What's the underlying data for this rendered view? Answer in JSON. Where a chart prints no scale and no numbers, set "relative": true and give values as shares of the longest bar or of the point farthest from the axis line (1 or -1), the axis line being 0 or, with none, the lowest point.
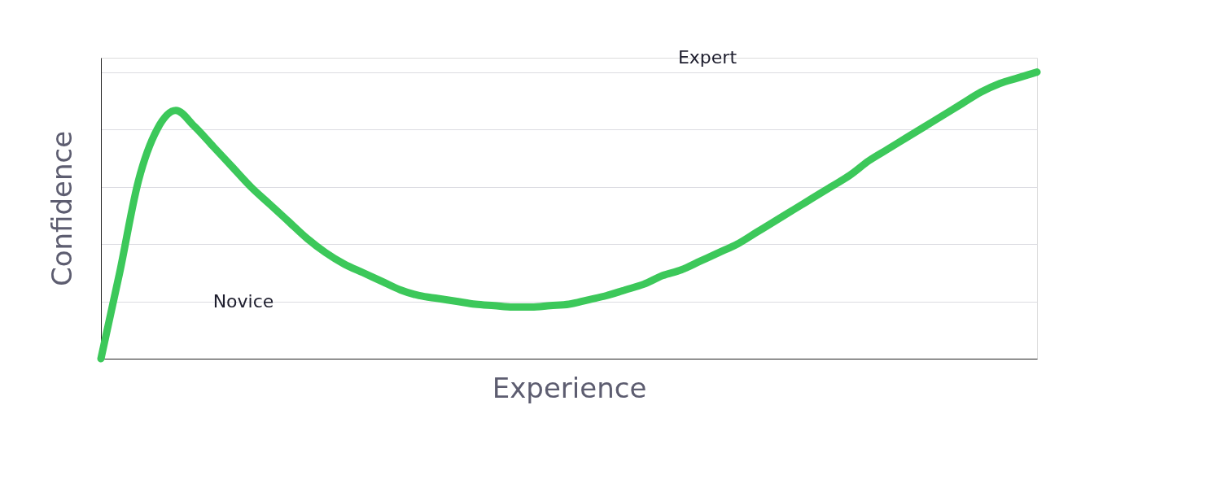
{
  "chart_data": {
    "type": "line",
    "relative": true,
    "xlabel": "Experience",
    "ylabel": "Confidence",
    "categories": [
      null,
      null,
      null,
      null,
      null,
      null,
      null,
      null,
      null,
      null,
      null,
      null,
      null,
      null,
      null,
      null,
      null,
      null,
      null,
      null,
      null,
      null,
      null,
      null,
      null,
      null,
      null,
      null,
      null,
      null,
      null,
      null,
      null,
      null,
      null,
      null,
      null,
      null,
      null,
      null,
      null,
      null,
      null,
      null,
      null,
      null,
      null,
      null,
      null,
      null,
      null
    ],
    "series": [
      {
        "color": "#3cc85a",
        "values": [
          0,
          0.3,
          0.62,
          0.8,
          0.866,
          0.81,
          0.74,
          0.67,
          0.6,
          0.54,
          0.48,
          0.42,
          0.37,
          0.33,
          0.3,
          0.27,
          0.24,
          0.22,
          0.21,
          0.2,
          0.19,
          0.185,
          0.18,
          0.18,
          0.185,
          0.19,
          0.205,
          0.22,
          0.24,
          0.26,
          0.29,
          0.31,
          0.34,
          0.37,
          0.4,
          0.44,
          0.48,
          0.52,
          0.56,
          0.6,
          0.64,
          0.69,
          0.73,
          0.77,
          0.81,
          0.85,
          0.89,
          0.93,
          0.96,
          0.98,
          1.0
        ]
      }
    ],
    "annotations": [
      "Novice",
      "Expert"
    ],
    "grid": "y",
    "line_style": "solid",
    "tick_labels": false
  }
}
